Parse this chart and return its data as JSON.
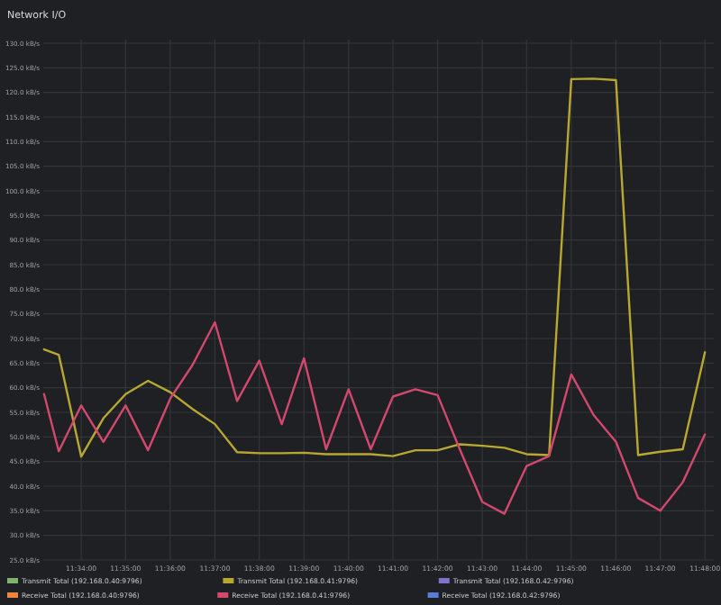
{
  "chart_data": {
    "type": "line",
    "title": "Network I/O",
    "x": [
      11.5528,
      11.5583,
      11.5667,
      11.575,
      11.5833,
      11.5917,
      11.6,
      11.6083,
      11.6167,
      11.625,
      11.6333,
      11.6417,
      11.65,
      11.6583,
      11.6667,
      11.675,
      11.6833,
      11.6917,
      11.7,
      11.7083,
      11.7167,
      11.725,
      11.7333,
      11.7417,
      11.75,
      11.7583,
      11.7667,
      11.775,
      11.7833,
      11.7917,
      11.8
    ],
    "xlim": [
      11.5525,
      11.8033
    ],
    "xticks": [
      {
        "value": 11.5667,
        "label": "11:34:00"
      },
      {
        "value": 11.5833,
        "label": "11:35:00"
      },
      {
        "value": 11.6,
        "label": "11:36:00"
      },
      {
        "value": 11.6167,
        "label": "11:37:00"
      },
      {
        "value": 11.6333,
        "label": "11:38:00"
      },
      {
        "value": 11.65,
        "label": "11:39:00"
      },
      {
        "value": 11.6667,
        "label": "11:40:00"
      },
      {
        "value": 11.6833,
        "label": "11:41:00"
      },
      {
        "value": 11.7,
        "label": "11:42:00"
      },
      {
        "value": 11.7167,
        "label": "11:43:00"
      },
      {
        "value": 11.7333,
        "label": "11:44:00"
      },
      {
        "value": 11.75,
        "label": "11:45:00"
      },
      {
        "value": 11.7667,
        "label": "11:46:00"
      },
      {
        "value": 11.7833,
        "label": "11:47:00"
      },
      {
        "value": 11.8,
        "label": "11:48:00"
      }
    ],
    "ylim": [
      25,
      130
    ],
    "yticks": [
      {
        "value": 25,
        "label": "25.0 kB/s"
      },
      {
        "value": 30,
        "label": "30.0 kB/s"
      },
      {
        "value": 35,
        "label": "35.0 kB/s"
      },
      {
        "value": 40,
        "label": "40.0 kB/s"
      },
      {
        "value": 45,
        "label": "45.0 kB/s"
      },
      {
        "value": 50,
        "label": "50.0 kB/s"
      },
      {
        "value": 55,
        "label": "55.0 kB/s"
      },
      {
        "value": 60,
        "label": "60.0 kB/s"
      },
      {
        "value": 65,
        "label": "65.0 kB/s"
      },
      {
        "value": 70,
        "label": "70.0 kB/s"
      },
      {
        "value": 75,
        "label": "75.0 kB/s"
      },
      {
        "value": 80,
        "label": "80.0 kB/s"
      },
      {
        "value": 85,
        "label": "85.0 kB/s"
      },
      {
        "value": 90,
        "label": "90.0 kB/s"
      },
      {
        "value": 95,
        "label": "95.0 kB/s"
      },
      {
        "value": 100,
        "label": "100.0 kB/s"
      },
      {
        "value": 105,
        "label": "105.0 kB/s"
      },
      {
        "value": 110,
        "label": "110.0 kB/s"
      },
      {
        "value": 115,
        "label": "115.0 kB/s"
      },
      {
        "value": 120,
        "label": "120.0 kB/s"
      },
      {
        "value": 125,
        "label": "125.0 kB/s"
      },
      {
        "value": 130,
        "label": "130.0 kB/s"
      }
    ],
    "grid": true,
    "legend": "bottom",
    "marker": "none",
    "line_style": "solid",
    "series": [
      {
        "name": "Transmit Total (192.168.0.40:9796)",
        "color": "#7eb26d",
        "values": [
          null,
          null,
          null,
          null,
          null,
          null,
          null,
          null,
          null,
          null,
          null,
          null,
          null,
          null,
          null,
          null,
          null,
          null,
          null,
          null,
          null,
          null,
          null,
          null,
          null,
          null,
          null,
          null,
          null,
          null,
          null
        ]
      },
      {
        "name": "Transmit Total (192.168.0.41:9796)",
        "color": "#b8a832",
        "values": [
          67.8,
          66.7,
          46.0,
          53.8,
          58.7,
          61.4,
          59.1,
          55.7,
          52.6,
          46.9,
          46.7,
          46.7,
          46.8,
          46.5,
          46.5,
          46.5,
          46.1,
          47.3,
          47.3,
          48.5,
          48.2,
          47.8,
          46.5,
          46.3,
          122.7,
          122.8,
          122.5,
          46.3,
          47.0,
          47.5,
          67.2
        ]
      },
      {
        "name": "Transmit Total (192.168.0.42:9796)",
        "color": "#7b74c8",
        "values": [
          null,
          null,
          null,
          null,
          null,
          null,
          null,
          null,
          null,
          null,
          null,
          null,
          null,
          null,
          null,
          null,
          null,
          null,
          null,
          null,
          null,
          null,
          null,
          null,
          null,
          null,
          null,
          null,
          null,
          null,
          null
        ]
      },
      {
        "name": "Receive Total (192.168.0.40:9796)",
        "color": "#ef843c",
        "values": [
          null,
          null,
          null,
          null,
          null,
          null,
          null,
          null,
          null,
          null,
          null,
          null,
          null,
          null,
          null,
          null,
          null,
          null,
          null,
          null,
          null,
          null,
          null,
          null,
          null,
          null,
          null,
          null,
          null,
          null,
          null
        ]
      },
      {
        "name": "Receive Total (192.168.0.41:9796)",
        "color": "#d4486e",
        "values": [
          58.7,
          47.1,
          56.4,
          49.0,
          56.4,
          47.3,
          57.8,
          64.6,
          73.3,
          57.3,
          65.5,
          52.6,
          66.0,
          47.5,
          59.7,
          47.5,
          58.2,
          59.7,
          58.5,
          47.5,
          36.8,
          34.4,
          44.1,
          46.1,
          62.7,
          54.5,
          49.0,
          37.6,
          35.0,
          40.8,
          50.5
        ]
      },
      {
        "name": "Receive Total (192.168.0.42:9796)",
        "color": "#5a7cd6",
        "values": [
          null,
          null,
          null,
          null,
          null,
          null,
          null,
          null,
          null,
          null,
          null,
          null,
          null,
          null,
          null,
          null,
          null,
          null,
          null,
          null,
          null,
          null,
          null,
          null,
          null,
          null,
          null,
          null,
          null,
          null,
          null
        ]
      }
    ]
  }
}
